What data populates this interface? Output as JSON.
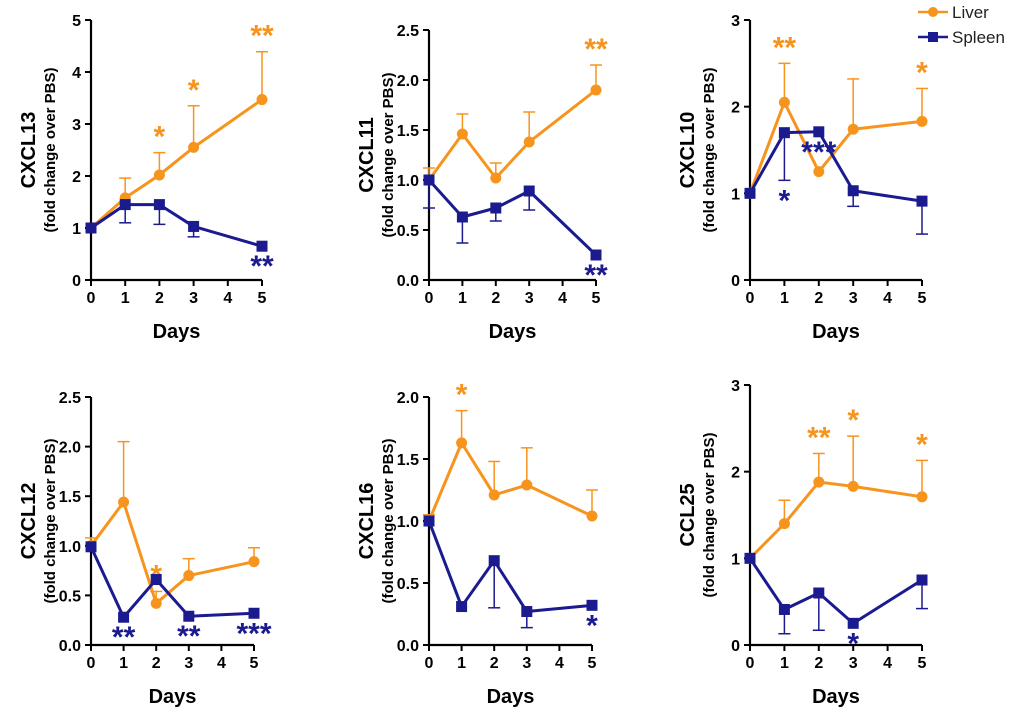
{
  "legend": {
    "liver_label": "Liver",
    "spleen_label": "Spleen",
    "liver_color": "#F7941D",
    "spleen_color": "#1B1B8F"
  },
  "chart_data": [
    {
      "type": "line",
      "title": "",
      "ylabel": "CXCL13",
      "ysublabel": "(fold change over PBS)",
      "xlabel": "Days",
      "x": [
        0,
        1,
        2,
        3,
        5
      ],
      "xticks": [
        "0",
        "1",
        "2",
        "3",
        "4",
        "5"
      ],
      "ylim": [
        0,
        5
      ],
      "yticks": [
        "0",
        "1",
        "2",
        "3",
        "4",
        "5"
      ],
      "series": [
        {
          "name": "Liver",
          "values": [
            1.0,
            1.58,
            2.02,
            2.55,
            3.47
          ],
          "error_upper": [
            0.0,
            0.38,
            0.43,
            0.8,
            0.92
          ],
          "annotations": [
            {
              "x": 2,
              "label": "*"
            },
            {
              "x": 3,
              "label": "*"
            },
            {
              "x": 5,
              "label": "**"
            }
          ]
        },
        {
          "name": "Spleen",
          "values": [
            1.0,
            1.45,
            1.45,
            1.03,
            0.65
          ],
          "error_lower": [
            0.0,
            0.35,
            0.38,
            0.2,
            0.0
          ],
          "annotations": [
            {
              "x": 5,
              "label": "**"
            }
          ]
        }
      ]
    },
    {
      "type": "line",
      "title": "",
      "ylabel": "CXCL11",
      "ysublabel": "(fold change over PBS)",
      "xlabel": "Days",
      "x": [
        0,
        1,
        2,
        3,
        5
      ],
      "xticks": [
        "0",
        "1",
        "2",
        "3",
        "4",
        "5"
      ],
      "ylim": [
        0,
        2.5
      ],
      "yticks": [
        "0.0",
        "0.5",
        "1.0",
        "1.5",
        "2.0",
        "2.5"
      ],
      "series": [
        {
          "name": "Liver",
          "values": [
            1.0,
            1.46,
            1.02,
            1.38,
            1.9
          ],
          "error_upper": [
            0.12,
            0.2,
            0.15,
            0.3,
            0.25
          ],
          "annotations": [
            {
              "x": 5,
              "label": "**"
            }
          ]
        },
        {
          "name": "Spleen",
          "values": [
            1.0,
            0.63,
            0.72,
            0.89,
            0.25
          ],
          "error_lower": [
            0.28,
            0.26,
            0.13,
            0.19,
            0.0
          ],
          "annotations": [
            {
              "x": 5,
              "label": "**"
            }
          ]
        }
      ]
    },
    {
      "type": "line",
      "title": "",
      "ylabel": "CXCL10",
      "ysublabel": "(fold change over PBS)",
      "xlabel": "Days",
      "x": [
        0,
        1,
        2,
        3,
        5
      ],
      "xticks": [
        "0",
        "1",
        "2",
        "3",
        "4",
        "5"
      ],
      "ylim": [
        0,
        3
      ],
      "yticks": [
        "0",
        "1",
        "2",
        "3"
      ],
      "series": [
        {
          "name": "Liver",
          "values": [
            1.0,
            2.05,
            1.25,
            1.74,
            1.83
          ],
          "error_upper": [
            0.0,
            0.45,
            0.0,
            0.58,
            0.38
          ],
          "annotations": [
            {
              "x": 1,
              "label": "**"
            },
            {
              "x": 5,
              "label": "*"
            }
          ]
        },
        {
          "name": "Spleen",
          "values": [
            1.0,
            1.7,
            1.71,
            1.03,
            0.91
          ],
          "error_lower": [
            0.0,
            0.55,
            0.0,
            0.18,
            0.38
          ],
          "annotations": [
            {
              "x": 1,
              "label": "*"
            },
            {
              "x": 2,
              "label": "***"
            }
          ]
        }
      ]
    },
    {
      "type": "line",
      "title": "",
      "ylabel": "CXCL12",
      "ysublabel": "(fold change over PBS)",
      "xlabel": "Days",
      "x": [
        0,
        1,
        2,
        3,
        5
      ],
      "xticks": [
        "0",
        "1",
        "2",
        "3",
        "4",
        "5"
      ],
      "ylim": [
        0,
        2.5
      ],
      "yticks": [
        "0.0",
        "0.5",
        "1.0",
        "1.5",
        "2.0",
        "2.5"
      ],
      "series": [
        {
          "name": "Liver",
          "values": [
            1.0,
            1.44,
            0.42,
            0.7,
            0.84
          ],
          "error_upper": [
            0.08,
            0.61,
            0.12,
            0.17,
            0.14
          ],
          "annotations": [
            {
              "x": 2,
              "label": "*"
            }
          ]
        },
        {
          "name": "Spleen",
          "values": [
            0.99,
            0.28,
            0.66,
            0.29,
            0.32
          ],
          "error_lower": [
            0.0,
            0.0,
            0.0,
            0.0,
            0.0
          ],
          "annotations": [
            {
              "x": 1,
              "label": "**"
            },
            {
              "x": 3,
              "label": "**"
            },
            {
              "x": 5,
              "label": "***"
            }
          ]
        }
      ]
    },
    {
      "type": "line",
      "title": "",
      "ylabel": "CXCL16",
      "ysublabel": "(fold change over PBS)",
      "xlabel": "Days",
      "x": [
        0,
        1,
        2,
        3,
        5
      ],
      "xticks": [
        "0",
        "1",
        "2",
        "3",
        "4",
        "5"
      ],
      "ylim": [
        0,
        2.0
      ],
      "yticks": [
        "0.0",
        "0.5",
        "1.0",
        "1.5",
        "2.0"
      ],
      "series": [
        {
          "name": "Liver",
          "values": [
            1.0,
            1.63,
            1.21,
            1.29,
            1.04
          ],
          "error_upper": [
            0.05,
            0.26,
            0.27,
            0.3,
            0.21
          ],
          "annotations": [
            {
              "x": 1,
              "label": "*"
            }
          ]
        },
        {
          "name": "Spleen",
          "values": [
            1.0,
            0.31,
            0.68,
            0.27,
            0.32
          ],
          "error_lower": [
            0.0,
            0.0,
            0.38,
            0.13,
            0.0
          ],
          "annotations": [
            {
              "x": 5,
              "label": "*"
            }
          ]
        }
      ]
    },
    {
      "type": "line",
      "title": "",
      "ylabel": "CCL25",
      "ysublabel": "(fold change over PBS)",
      "xlabel": "Days",
      "x": [
        0,
        1,
        2,
        3,
        5
      ],
      "xticks": [
        "0",
        "1",
        "2",
        "3",
        "4",
        "5"
      ],
      "ylim": [
        0,
        3
      ],
      "yticks": [
        "0",
        "1",
        "2",
        "3"
      ],
      "series": [
        {
          "name": "Liver",
          "values": [
            1.0,
            1.4,
            1.88,
            1.83,
            1.71
          ],
          "error_upper": [
            0.0,
            0.27,
            0.33,
            0.58,
            0.42
          ],
          "annotations": [
            {
              "x": 2,
              "label": "**"
            },
            {
              "x": 3,
              "label": "*"
            },
            {
              "x": 5,
              "label": "*"
            }
          ]
        },
        {
          "name": "Spleen",
          "values": [
            1.0,
            0.41,
            0.6,
            0.25,
            0.75
          ],
          "error_lower": [
            0.0,
            0.28,
            0.43,
            0.0,
            0.33
          ],
          "annotations": [
            {
              "x": 3,
              "label": "*"
            }
          ]
        }
      ]
    }
  ]
}
